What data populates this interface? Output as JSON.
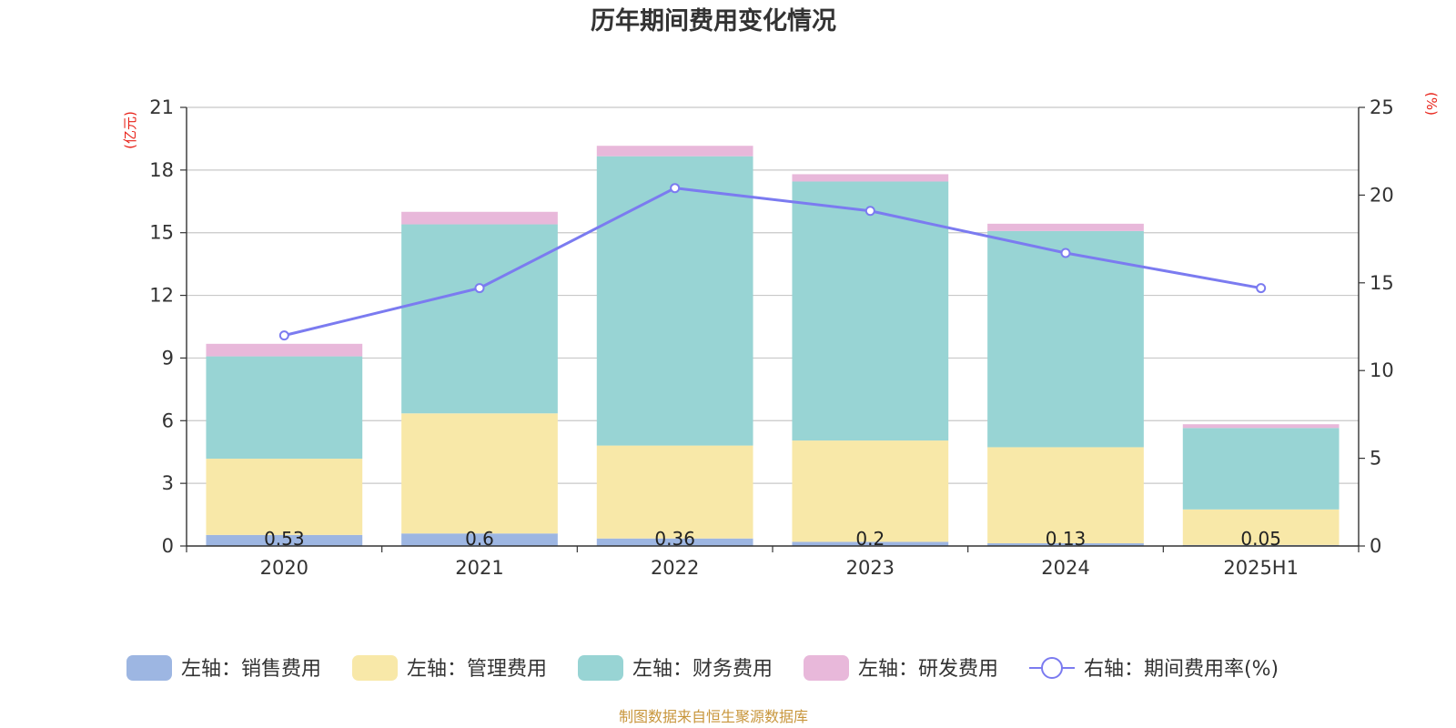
{
  "chart_data": {
    "type": "bar",
    "title": "历年期间费用变化情况",
    "categories": [
      "2020",
      "2021",
      "2022",
      "2023",
      "2024",
      "2025H1"
    ],
    "left_axis": {
      "unit": "(亿元)",
      "ylim": [
        0,
        21
      ],
      "ticks": [
        0,
        3,
        6,
        9,
        12,
        15,
        18,
        21
      ]
    },
    "right_axis": {
      "unit": "(%)",
      "ylim": [
        0,
        25
      ],
      "ticks": [
        0,
        5,
        10,
        15,
        20,
        25
      ]
    },
    "series": [
      {
        "name": "左轴：销售费用",
        "type": "bar",
        "axis": "left",
        "color": "#9db6e2",
        "values": [
          0.53,
          0.6,
          0.36,
          0.2,
          0.13,
          0.05
        ],
        "labels": [
          "0.53",
          "0.6",
          "0.36",
          "0.2",
          "0.13",
          "0.05"
        ]
      },
      {
        "name": "左轴：管理费用",
        "type": "bar",
        "axis": "left",
        "color": "#f8e8a8",
        "values": [
          3.65,
          5.75,
          4.45,
          4.85,
          4.6,
          1.7
        ]
      },
      {
        "name": "左轴：财务费用",
        "type": "bar",
        "axis": "left",
        "color": "#98d4d4",
        "values": [
          4.9,
          9.05,
          13.85,
          12.4,
          10.35,
          3.9
        ]
      },
      {
        "name": "左轴：研发费用",
        "type": "bar",
        "axis": "left",
        "color": "#e8b8da",
        "values": [
          0.6,
          0.6,
          0.5,
          0.35,
          0.35,
          0.18
        ]
      },
      {
        "name": "右轴：期间费用率(%)",
        "type": "line",
        "axis": "right",
        "color": "#7b7bf0",
        "values": [
          12.0,
          14.7,
          20.4,
          19.1,
          16.7,
          14.7
        ]
      }
    ],
    "grid": true,
    "legend_position": "bottom"
  },
  "source_note": "制图数据来自恒生聚源数据库"
}
